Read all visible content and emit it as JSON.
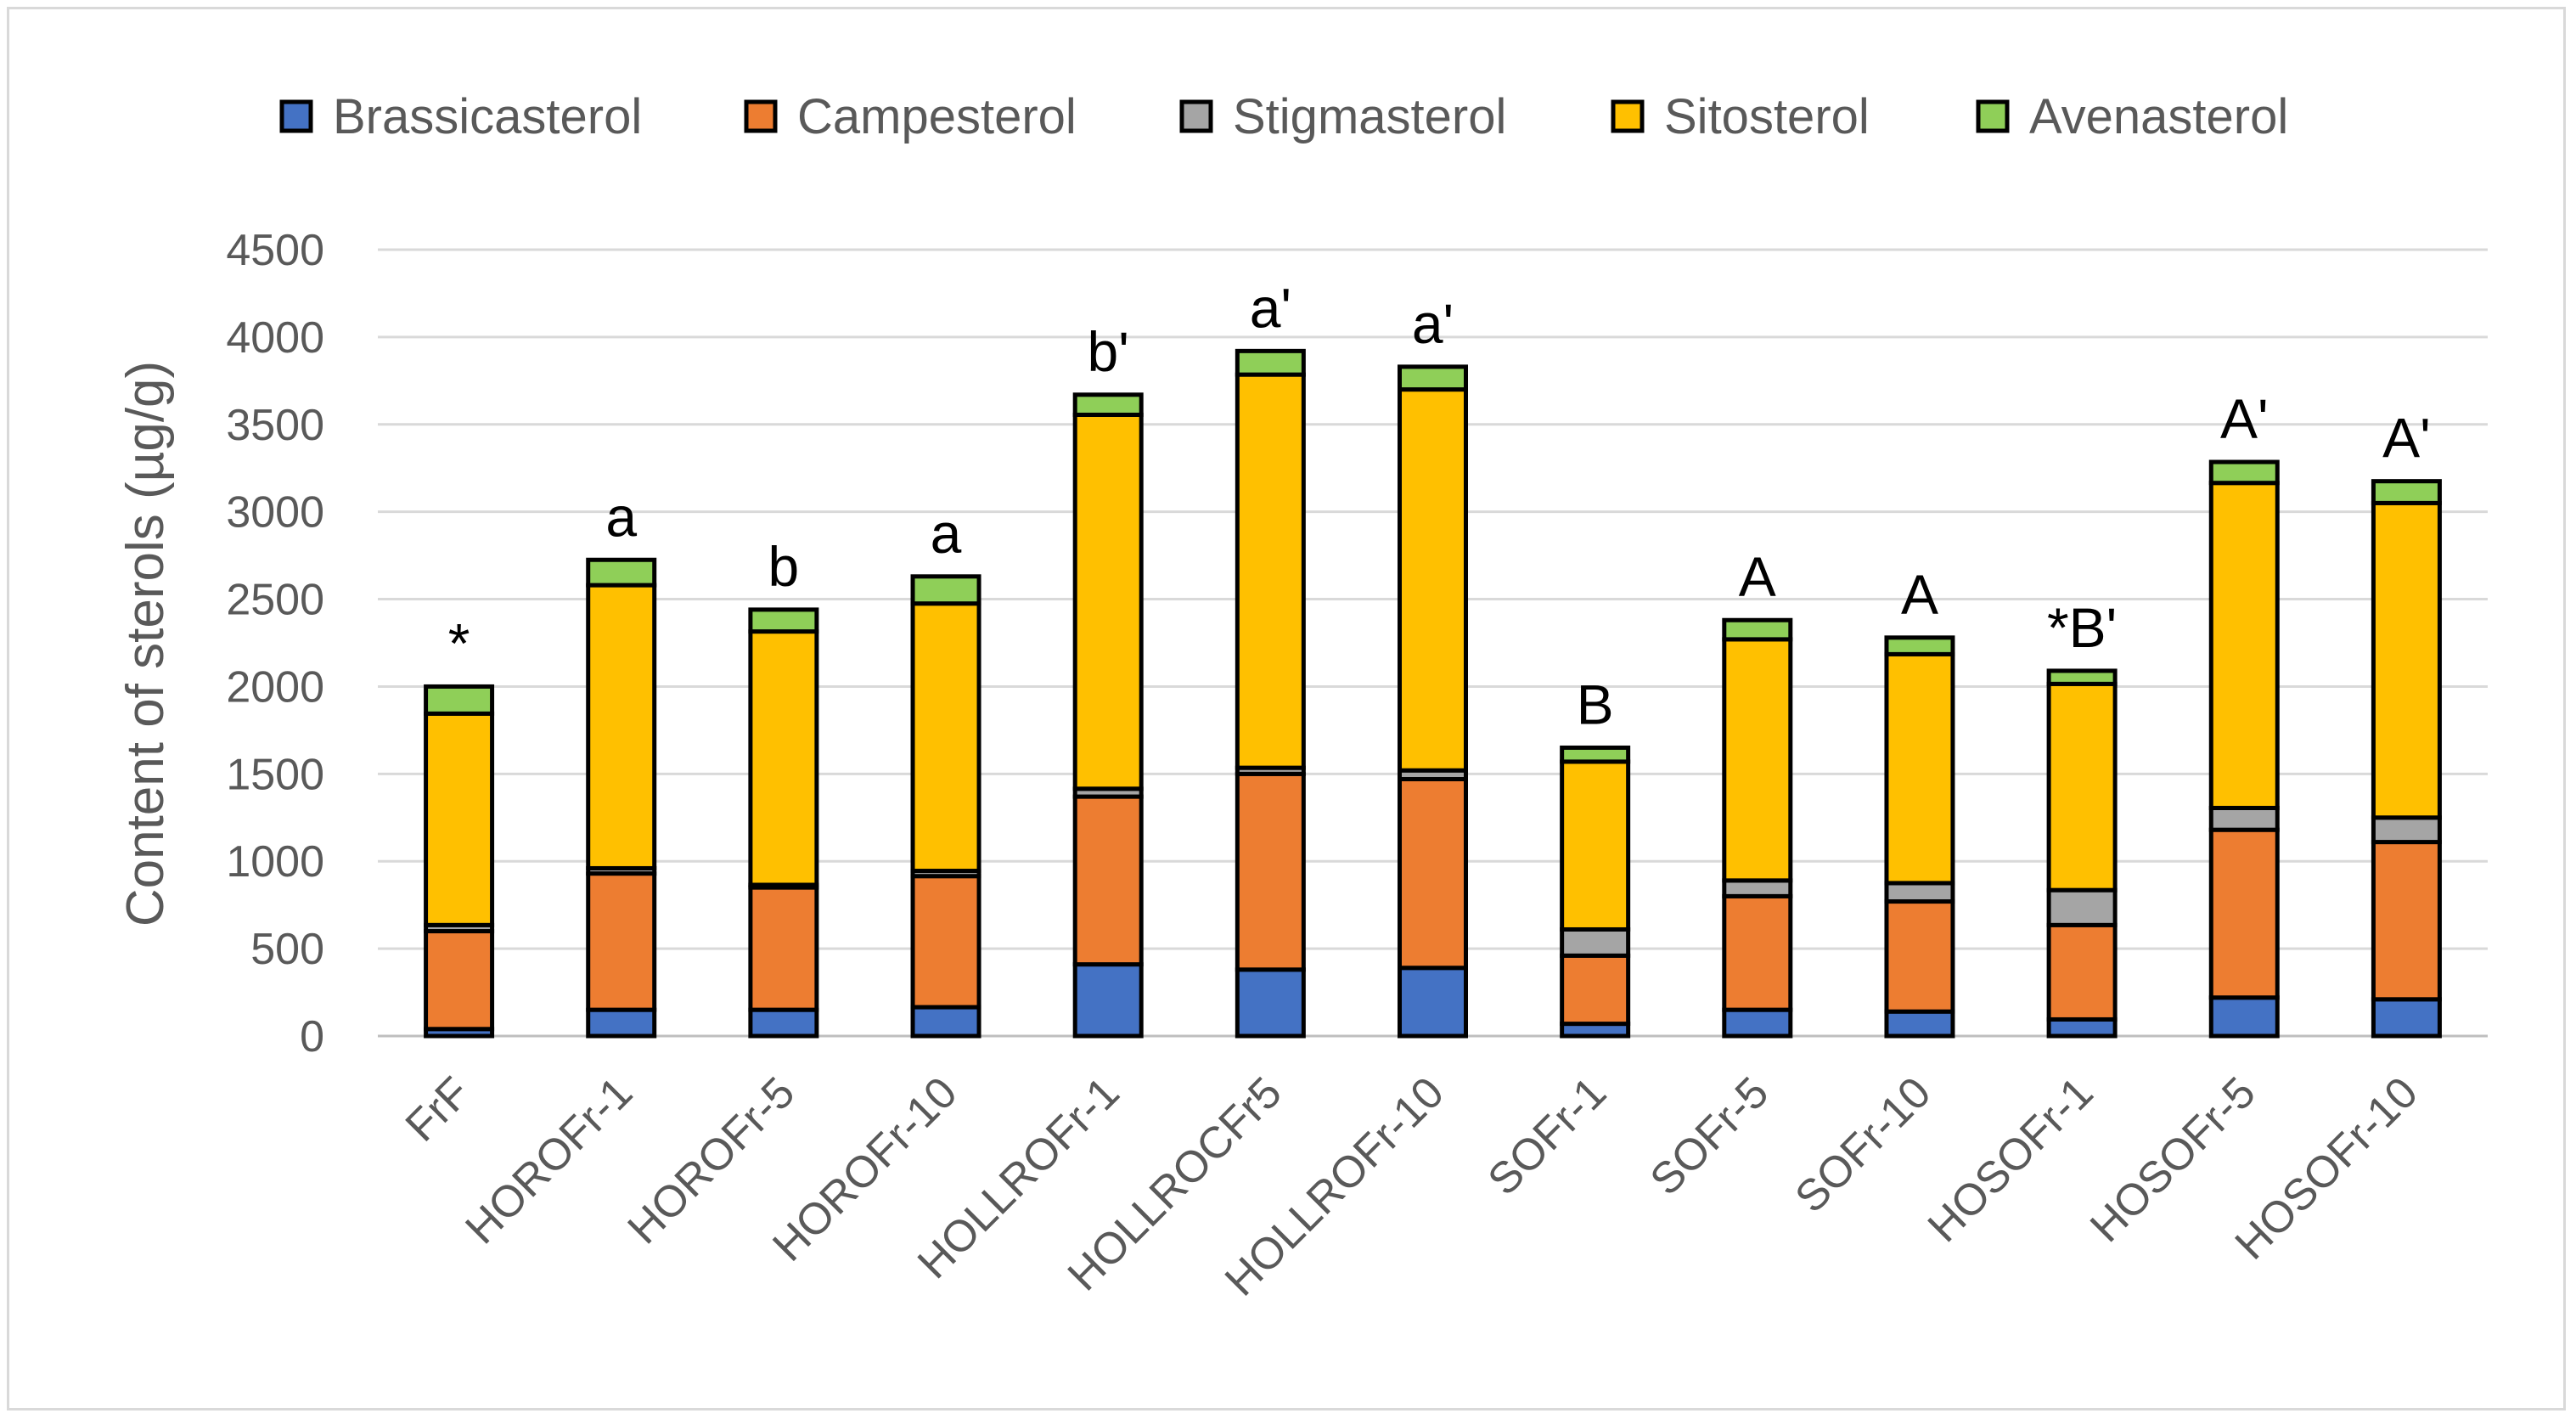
{
  "chart_data": {
    "type": "bar",
    "stacked": true,
    "title": "",
    "xlabel": "",
    "ylabel": "Content of sterols (µg/g)",
    "ylim": [
      0,
      4500
    ],
    "yticks": [
      0,
      500,
      1000,
      1500,
      2000,
      2500,
      3000,
      3500,
      4000,
      4500
    ],
    "grid": true,
    "legend_position": "top",
    "categories": [
      "FrF",
      "HOROFr-1",
      "HOROFr-5",
      "HOROFr-10",
      "HOLLROFr-1",
      "HOLLROCFr5",
      "HOLLROFr-10",
      "SOFr-1",
      "SOFr-5",
      "SOFr-10",
      "HOSOFr-1",
      "HOSOFr-5",
      "HOSOFr-10"
    ],
    "series": [
      {
        "name": "Brassicasterol",
        "color": "#4472c4",
        "values": [
          40,
          150,
          150,
          165,
          410,
          380,
          390,
          70,
          150,
          140,
          95,
          220,
          210
        ]
      },
      {
        "name": "Campesterol",
        "color": "#ed7d31",
        "values": [
          560,
          780,
          700,
          750,
          960,
          1120,
          1080,
          390,
          650,
          630,
          540,
          960,
          900
        ]
      },
      {
        "name": "Stigmasterol",
        "color": "#a5a5a5",
        "values": [
          35,
          30,
          15,
          30,
          45,
          35,
          50,
          150,
          90,
          105,
          200,
          125,
          140
        ]
      },
      {
        "name": "Sitosterol",
        "color": "#ffc000",
        "values": [
          1210,
          1620,
          1450,
          1530,
          2140,
          2250,
          2180,
          960,
          1380,
          1310,
          1180,
          1860,
          1800
        ]
      },
      {
        "name": "Avenasterol",
        "color": "#8fcf58",
        "values": [
          155,
          145,
          125,
          155,
          115,
          135,
          130,
          80,
          110,
          95,
          75,
          120,
          125
        ]
      }
    ],
    "annotations": [
      "*",
      "a",
      "b",
      "a",
      "b'",
      "a'",
      "a'",
      "B",
      "A",
      "A",
      "*B'",
      "A'",
      "A'"
    ]
  }
}
